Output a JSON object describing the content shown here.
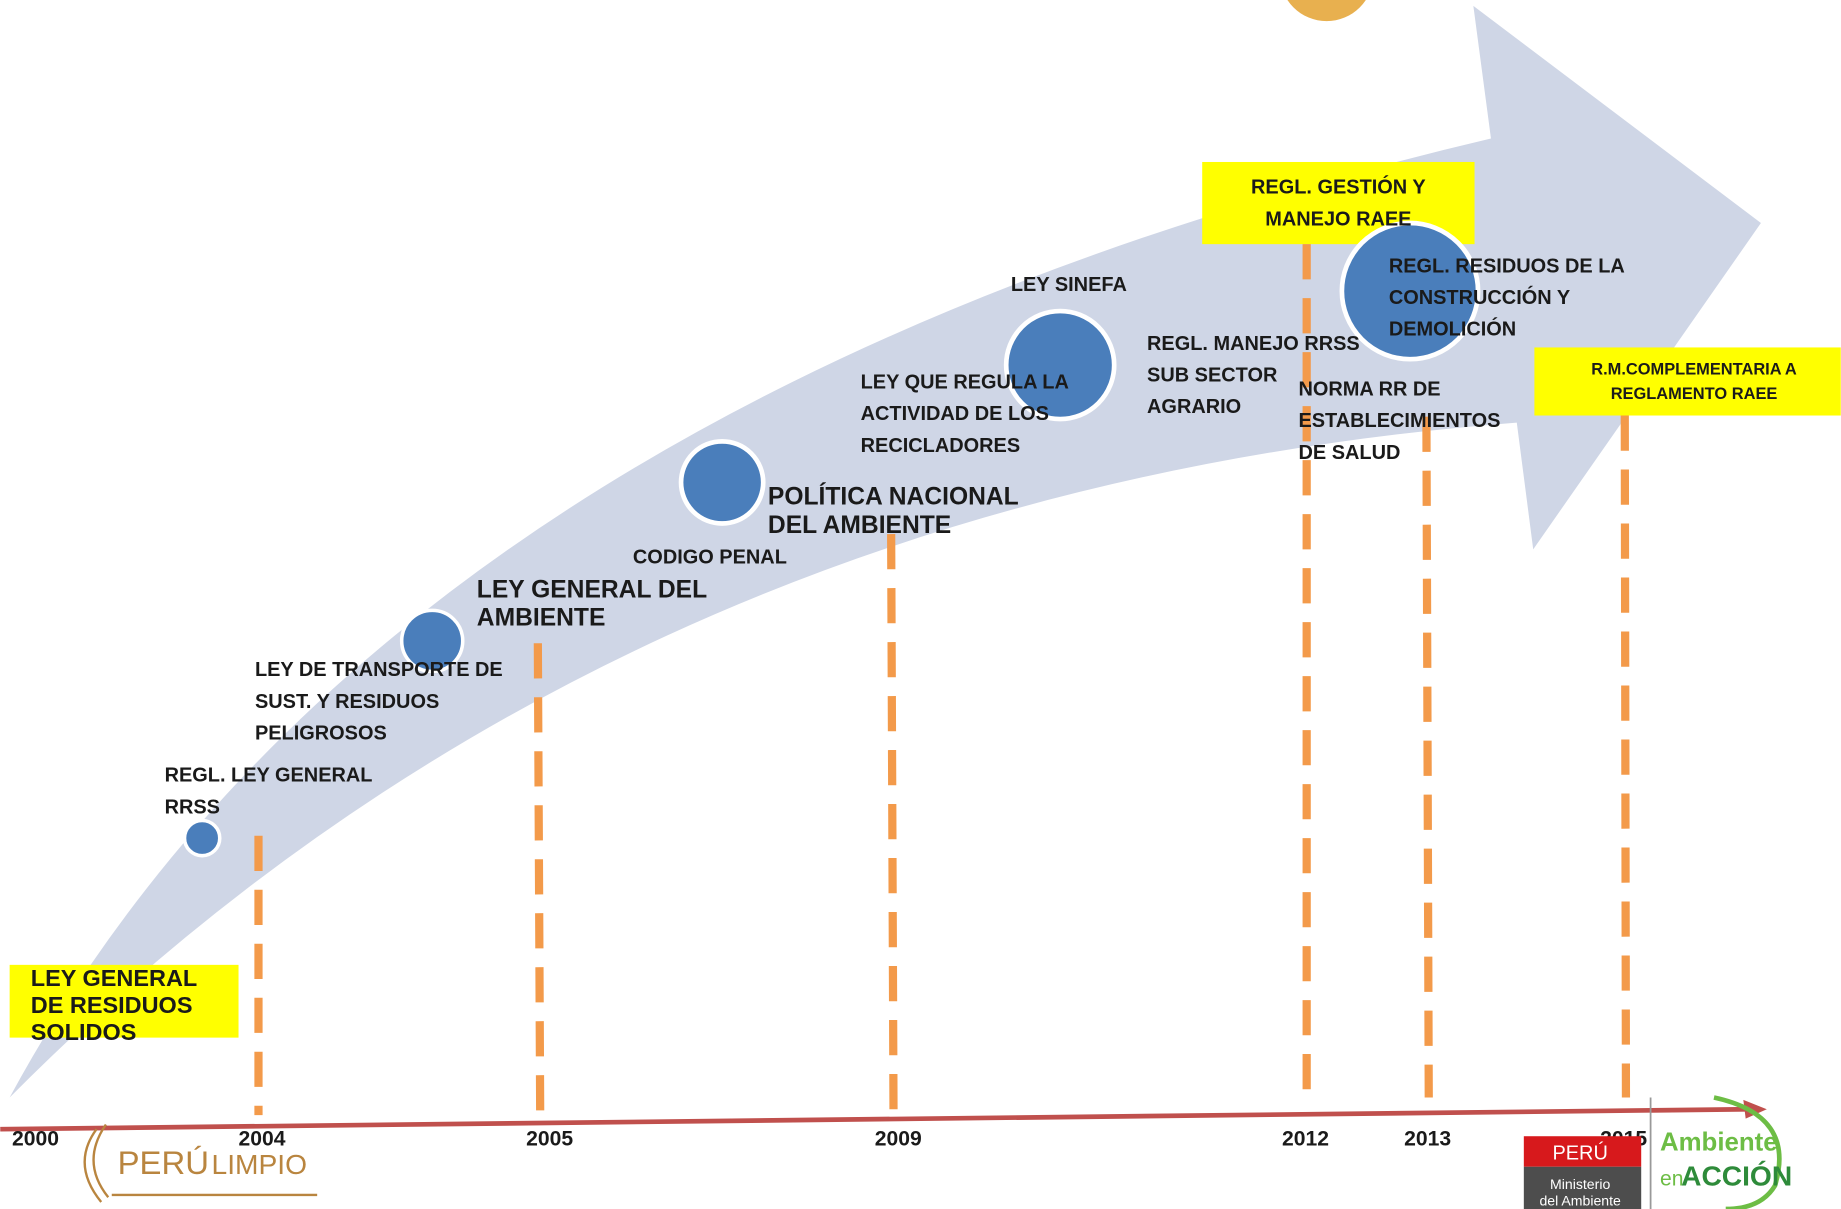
{
  "years": [
    "2000",
    "2004",
    "2005",
    "2009",
    "2012",
    "2013",
    "2015"
  ],
  "events": [
    {
      "lines": [
        "LEY GENERAL",
        "DE RESIDUOS",
        "SOLIDOS"
      ]
    },
    {
      "lines": [
        "REGL. LEY GENERAL",
        "RRSS"
      ]
    },
    {
      "lines": [
        "LEY DE TRANSPORTE DE",
        "SUST. Y RESIDUOS",
        "PELIGROSOS"
      ]
    },
    {
      "lines": [
        "LEY GENERAL DEL",
        "AMBIENTE"
      ]
    },
    {
      "lines": [
        "CODIGO PENAL"
      ]
    },
    {
      "lines": [
        "POLÍTICA NACIONAL",
        "DEL AMBIENTE"
      ]
    },
    {
      "lines": [
        "LEY QUE REGULA LA",
        "ACTIVIDAD DE LOS",
        "RECICLADORES"
      ]
    },
    {
      "lines": [
        "LEY SINEFA"
      ]
    },
    {
      "lines": [
        "REGL. MANEJO RRSS",
        "SUB SECTOR",
        "AGRARIO"
      ]
    },
    {
      "lines": [
        "REGL. GESTIÓN Y",
        "MANEJO RAEE"
      ]
    },
    {
      "lines": [
        "NORMA RR DE",
        "ESTABLECIMIENTOS",
        "DE SALUD"
      ]
    },
    {
      "lines": [
        "REGL. RESIDUOS DE LA",
        "CONSTRUCCIÓN Y",
        "DEMOLICIÓN"
      ]
    },
    {
      "lines": [
        "R.M.COMPLEMENTARIA A",
        "REGLAMENTO RAEE"
      ]
    }
  ],
  "logos": {
    "peru_limpio": [
      "PERÚ",
      "LIMPIO"
    ],
    "ministry": [
      "PERÚ",
      "Ministerio",
      "del Ambiente"
    ],
    "campaign": [
      "Ambiente",
      "en",
      "ACCIÓN"
    ]
  }
}
